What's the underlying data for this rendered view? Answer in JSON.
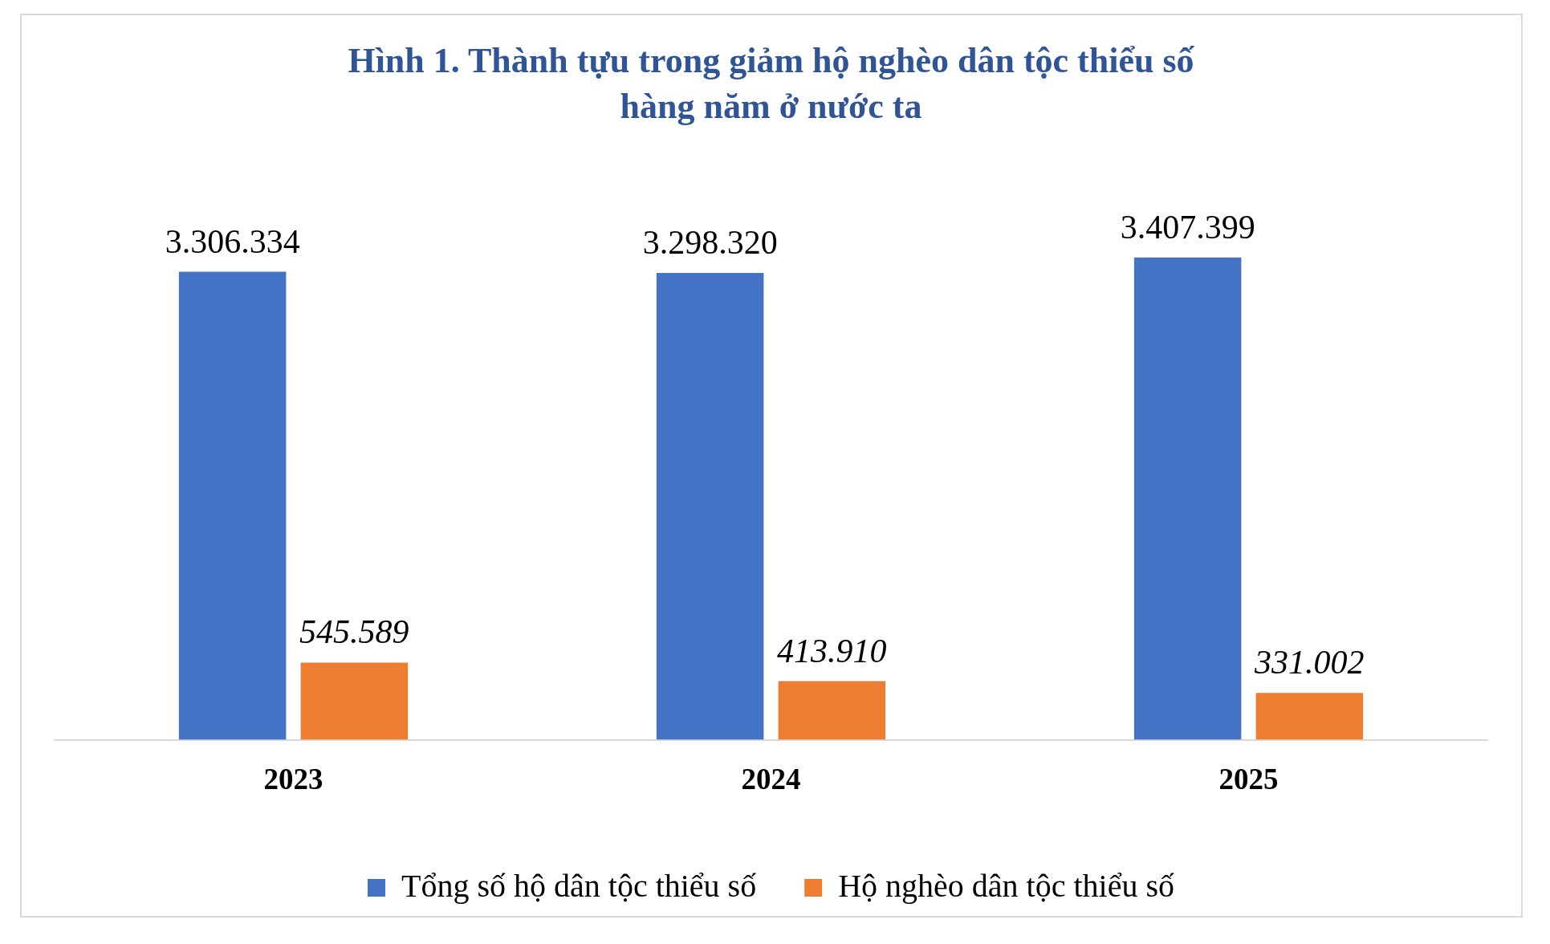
{
  "chart_data": {
    "type": "bar",
    "title": [
      "Hình 1. Thành tựu trong giảm hộ nghèo dân tộc thiểu số",
      "hàng năm ở nước ta"
    ],
    "categories": [
      "2023",
      "2024",
      "2025"
    ],
    "series": [
      {
        "name": "Tổng số hộ dân tộc thiểu số",
        "color": "#4472c4",
        "values": [
          3306334,
          3298320,
          3407399
        ],
        "value_labels": [
          "3.306.334",
          "3.298.320",
          "3.407.399"
        ]
      },
      {
        "name": "Hộ nghèo dân tộc thiểu số",
        "color": "#ed7d31",
        "values": [
          545589,
          413910,
          331002
        ],
        "value_labels": [
          "545.589",
          "413.910",
          "331.002"
        ]
      }
    ],
    "grid": false,
    "legend": "bottom"
  }
}
